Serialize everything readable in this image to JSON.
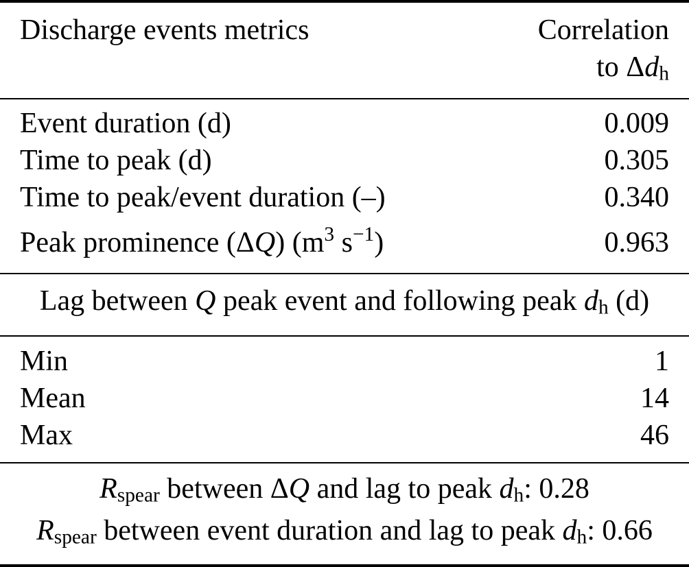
{
  "colors": {
    "text": "#000000",
    "background": "#ffffff",
    "rule": "#000000"
  },
  "table": {
    "header": {
      "metrics_label": "Discharge events metrics",
      "correlation_line1": "Correlation",
      "correlation_line2": [
        {
          "t": "to Δ",
          "s": "n"
        },
        {
          "t": "d",
          "s": "i"
        },
        {
          "t": "h",
          "s": "sub"
        }
      ]
    },
    "metric_rows": [
      {
        "label": [
          {
            "t": "Event duration (d)",
            "s": "n"
          }
        ],
        "value": "0.009"
      },
      {
        "label": [
          {
            "t": "Time to peak (d)",
            "s": "n"
          }
        ],
        "value": "0.305"
      },
      {
        "label": [
          {
            "t": "Time to peak/event duration (–)",
            "s": "n"
          }
        ],
        "value": "0.340"
      },
      {
        "label": [
          {
            "t": "Peak prominence (Δ",
            "s": "n"
          },
          {
            "t": "Q",
            "s": "i"
          },
          {
            "t": ") (m",
            "s": "n"
          },
          {
            "t": "3",
            "s": "sup"
          },
          {
            "t": " s",
            "s": "n"
          },
          {
            "t": "−1",
            "s": "sup"
          },
          {
            "t": ")",
            "s": "n"
          }
        ],
        "value": "0.963"
      }
    ],
    "lag_section_title": [
      {
        "t": "Lag between ",
        "s": "n"
      },
      {
        "t": "Q",
        "s": "i"
      },
      {
        "t": " peak event and following peak ",
        "s": "n"
      },
      {
        "t": "d",
        "s": "i"
      },
      {
        "t": "h",
        "s": "sub"
      },
      {
        "t": " (d)",
        "s": "n"
      }
    ],
    "lag_rows": [
      {
        "label": [
          {
            "t": "Min",
            "s": "n"
          }
        ],
        "value": "1"
      },
      {
        "label": [
          {
            "t": "Mean",
            "s": "n"
          }
        ],
        "value": "14"
      },
      {
        "label": [
          {
            "t": "Max",
            "s": "n"
          }
        ],
        "value": "46"
      }
    ],
    "footer_lines": [
      [
        {
          "t": "R",
          "s": "i"
        },
        {
          "t": "spear",
          "s": "sub"
        },
        {
          "t": " between Δ",
          "s": "n"
        },
        {
          "t": "Q",
          "s": "i"
        },
        {
          "t": " and lag to peak ",
          "s": "n"
        },
        {
          "t": "d",
          "s": "i"
        },
        {
          "t": "h",
          "s": "sub"
        },
        {
          "t": ": 0.28",
          "s": "n"
        }
      ],
      [
        {
          "t": "R",
          "s": "i"
        },
        {
          "t": "spear",
          "s": "sub"
        },
        {
          "t": " between event duration and lag to peak ",
          "s": "n"
        },
        {
          "t": "d",
          "s": "i"
        },
        {
          "t": "h",
          "s": "sub"
        },
        {
          "t": ": 0.66",
          "s": "n"
        }
      ]
    ]
  }
}
